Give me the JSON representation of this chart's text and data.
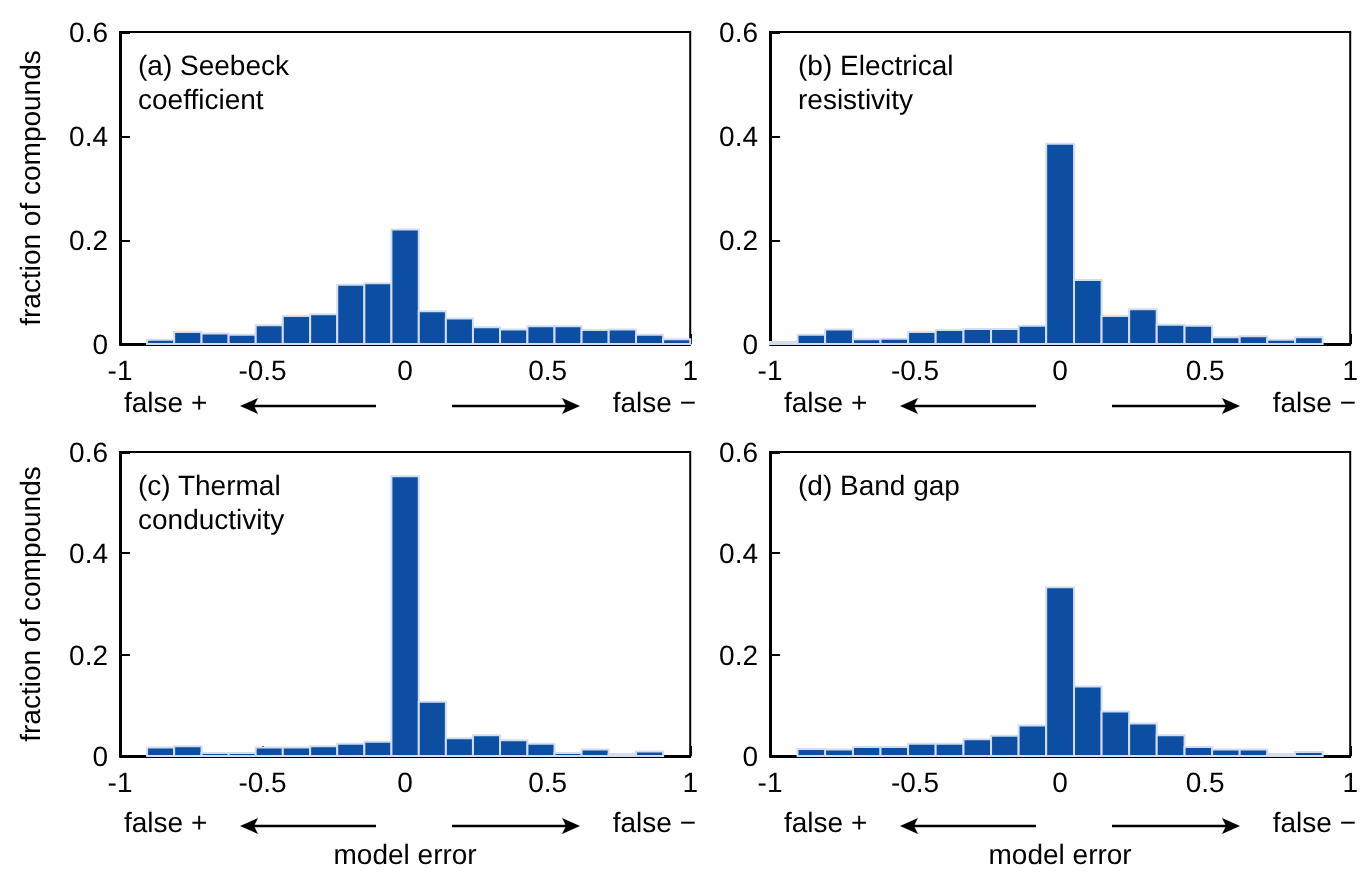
{
  "chart_data": [
    {
      "type": "histogram",
      "title": "(a) Seebeck coefficient",
      "ylabel": "fraction of compounds",
      "color": "#0b4ea2",
      "annotations": [
        "false +",
        "false −"
      ],
      "bins": [
        -1,
        -0.905,
        -0.81,
        -0.714,
        -0.619,
        -0.524,
        -0.429,
        -0.333,
        -0.238,
        -0.143,
        -0.048,
        0.048,
        0.143,
        0.238,
        0.333,
        0.429,
        0.524,
        0.619,
        0.714,
        0.81,
        0.905,
        1
      ],
      "values": [
        0,
        0.008,
        0.023,
        0.02,
        0.018,
        0.036,
        0.054,
        0.057,
        0.114,
        0.117,
        0.22,
        0.063,
        0.049,
        0.032,
        0.028,
        0.034,
        0.034,
        0.027,
        0.028,
        0.018,
        0.009
      ],
      "xlim": [
        -1,
        1
      ],
      "ylim": [
        0,
        0.6
      ],
      "xticks": [
        -1,
        -0.5,
        0,
        0.5,
        1
      ],
      "yticks": [
        0,
        0.2,
        0.4,
        0.6
      ]
    },
    {
      "type": "histogram",
      "title": "(b) Electrical resistivity",
      "color": "#0b4ea2",
      "annotations": [
        "false +",
        "false −"
      ],
      "bins": [
        -1,
        -0.905,
        -0.81,
        -0.714,
        -0.619,
        -0.524,
        -0.429,
        -0.333,
        -0.238,
        -0.143,
        -0.048,
        0.048,
        0.143,
        0.238,
        0.333,
        0.429,
        0.524,
        0.619,
        0.714,
        0.81,
        0.905,
        1
      ],
      "values": [
        0.004,
        0.018,
        0.028,
        0.009,
        0.01,
        0.023,
        0.027,
        0.029,
        0.029,
        0.035,
        0.385,
        0.123,
        0.054,
        0.067,
        0.037,
        0.035,
        0.013,
        0.015,
        0.008,
        0.013,
        0
      ],
      "xlim": [
        -1,
        1
      ],
      "ylim": [
        0,
        0.6
      ],
      "xticks": [
        -1,
        -0.5,
        0,
        0.5,
        1
      ],
      "yticks": [
        0,
        0.2,
        0.4,
        0.6
      ]
    },
    {
      "type": "histogram",
      "title": "(c) Thermal conductivity",
      "xlabel": "model error",
      "ylabel": "fraction of compounds",
      "color": "#0b4ea2",
      "annotations": [
        "false +",
        "false −"
      ],
      "bins": [
        -1,
        -0.905,
        -0.81,
        -0.714,
        -0.619,
        -0.524,
        -0.429,
        -0.333,
        -0.238,
        -0.143,
        -0.048,
        0.048,
        0.143,
        0.238,
        0.333,
        0.429,
        0.524,
        0.619,
        0.714,
        0.81,
        0.905,
        1
      ],
      "values": [
        0,
        0.017,
        0.019,
        0.006,
        0.006,
        0.017,
        0.017,
        0.019,
        0.024,
        0.028,
        0.552,
        0.107,
        0.035,
        0.041,
        0.031,
        0.024,
        0.006,
        0.013,
        0.004,
        0.009,
        0
      ],
      "xlim": [
        -1,
        1
      ],
      "ylim": [
        0,
        0.6
      ],
      "xticks": [
        -1,
        -0.5,
        0,
        0.5,
        1
      ],
      "yticks": [
        0,
        0.2,
        0.4,
        0.6
      ]
    },
    {
      "type": "histogram",
      "title": "(d) Band gap",
      "xlabel": "model error",
      "color": "#0b4ea2",
      "annotations": [
        "false +",
        "false −"
      ],
      "bins": [
        -1,
        -0.905,
        -0.81,
        -0.714,
        -0.619,
        -0.524,
        -0.429,
        -0.333,
        -0.238,
        -0.143,
        -0.048,
        0.048,
        0.143,
        0.238,
        0.333,
        0.429,
        0.524,
        0.619,
        0.714,
        0.81,
        0.905,
        1
      ],
      "values": [
        0,
        0.014,
        0.013,
        0.018,
        0.018,
        0.024,
        0.024,
        0.033,
        0.04,
        0.06,
        0.333,
        0.137,
        0.088,
        0.064,
        0.041,
        0.018,
        0.013,
        0.013,
        0.004,
        0.008,
        0
      ],
      "xlim": [
        -1,
        1
      ],
      "ylim": [
        0,
        0.6
      ],
      "xticks": [
        -1,
        -0.5,
        0,
        0.5,
        1
      ],
      "yticks": [
        0,
        0.2,
        0.4,
        0.6
      ]
    }
  ]
}
